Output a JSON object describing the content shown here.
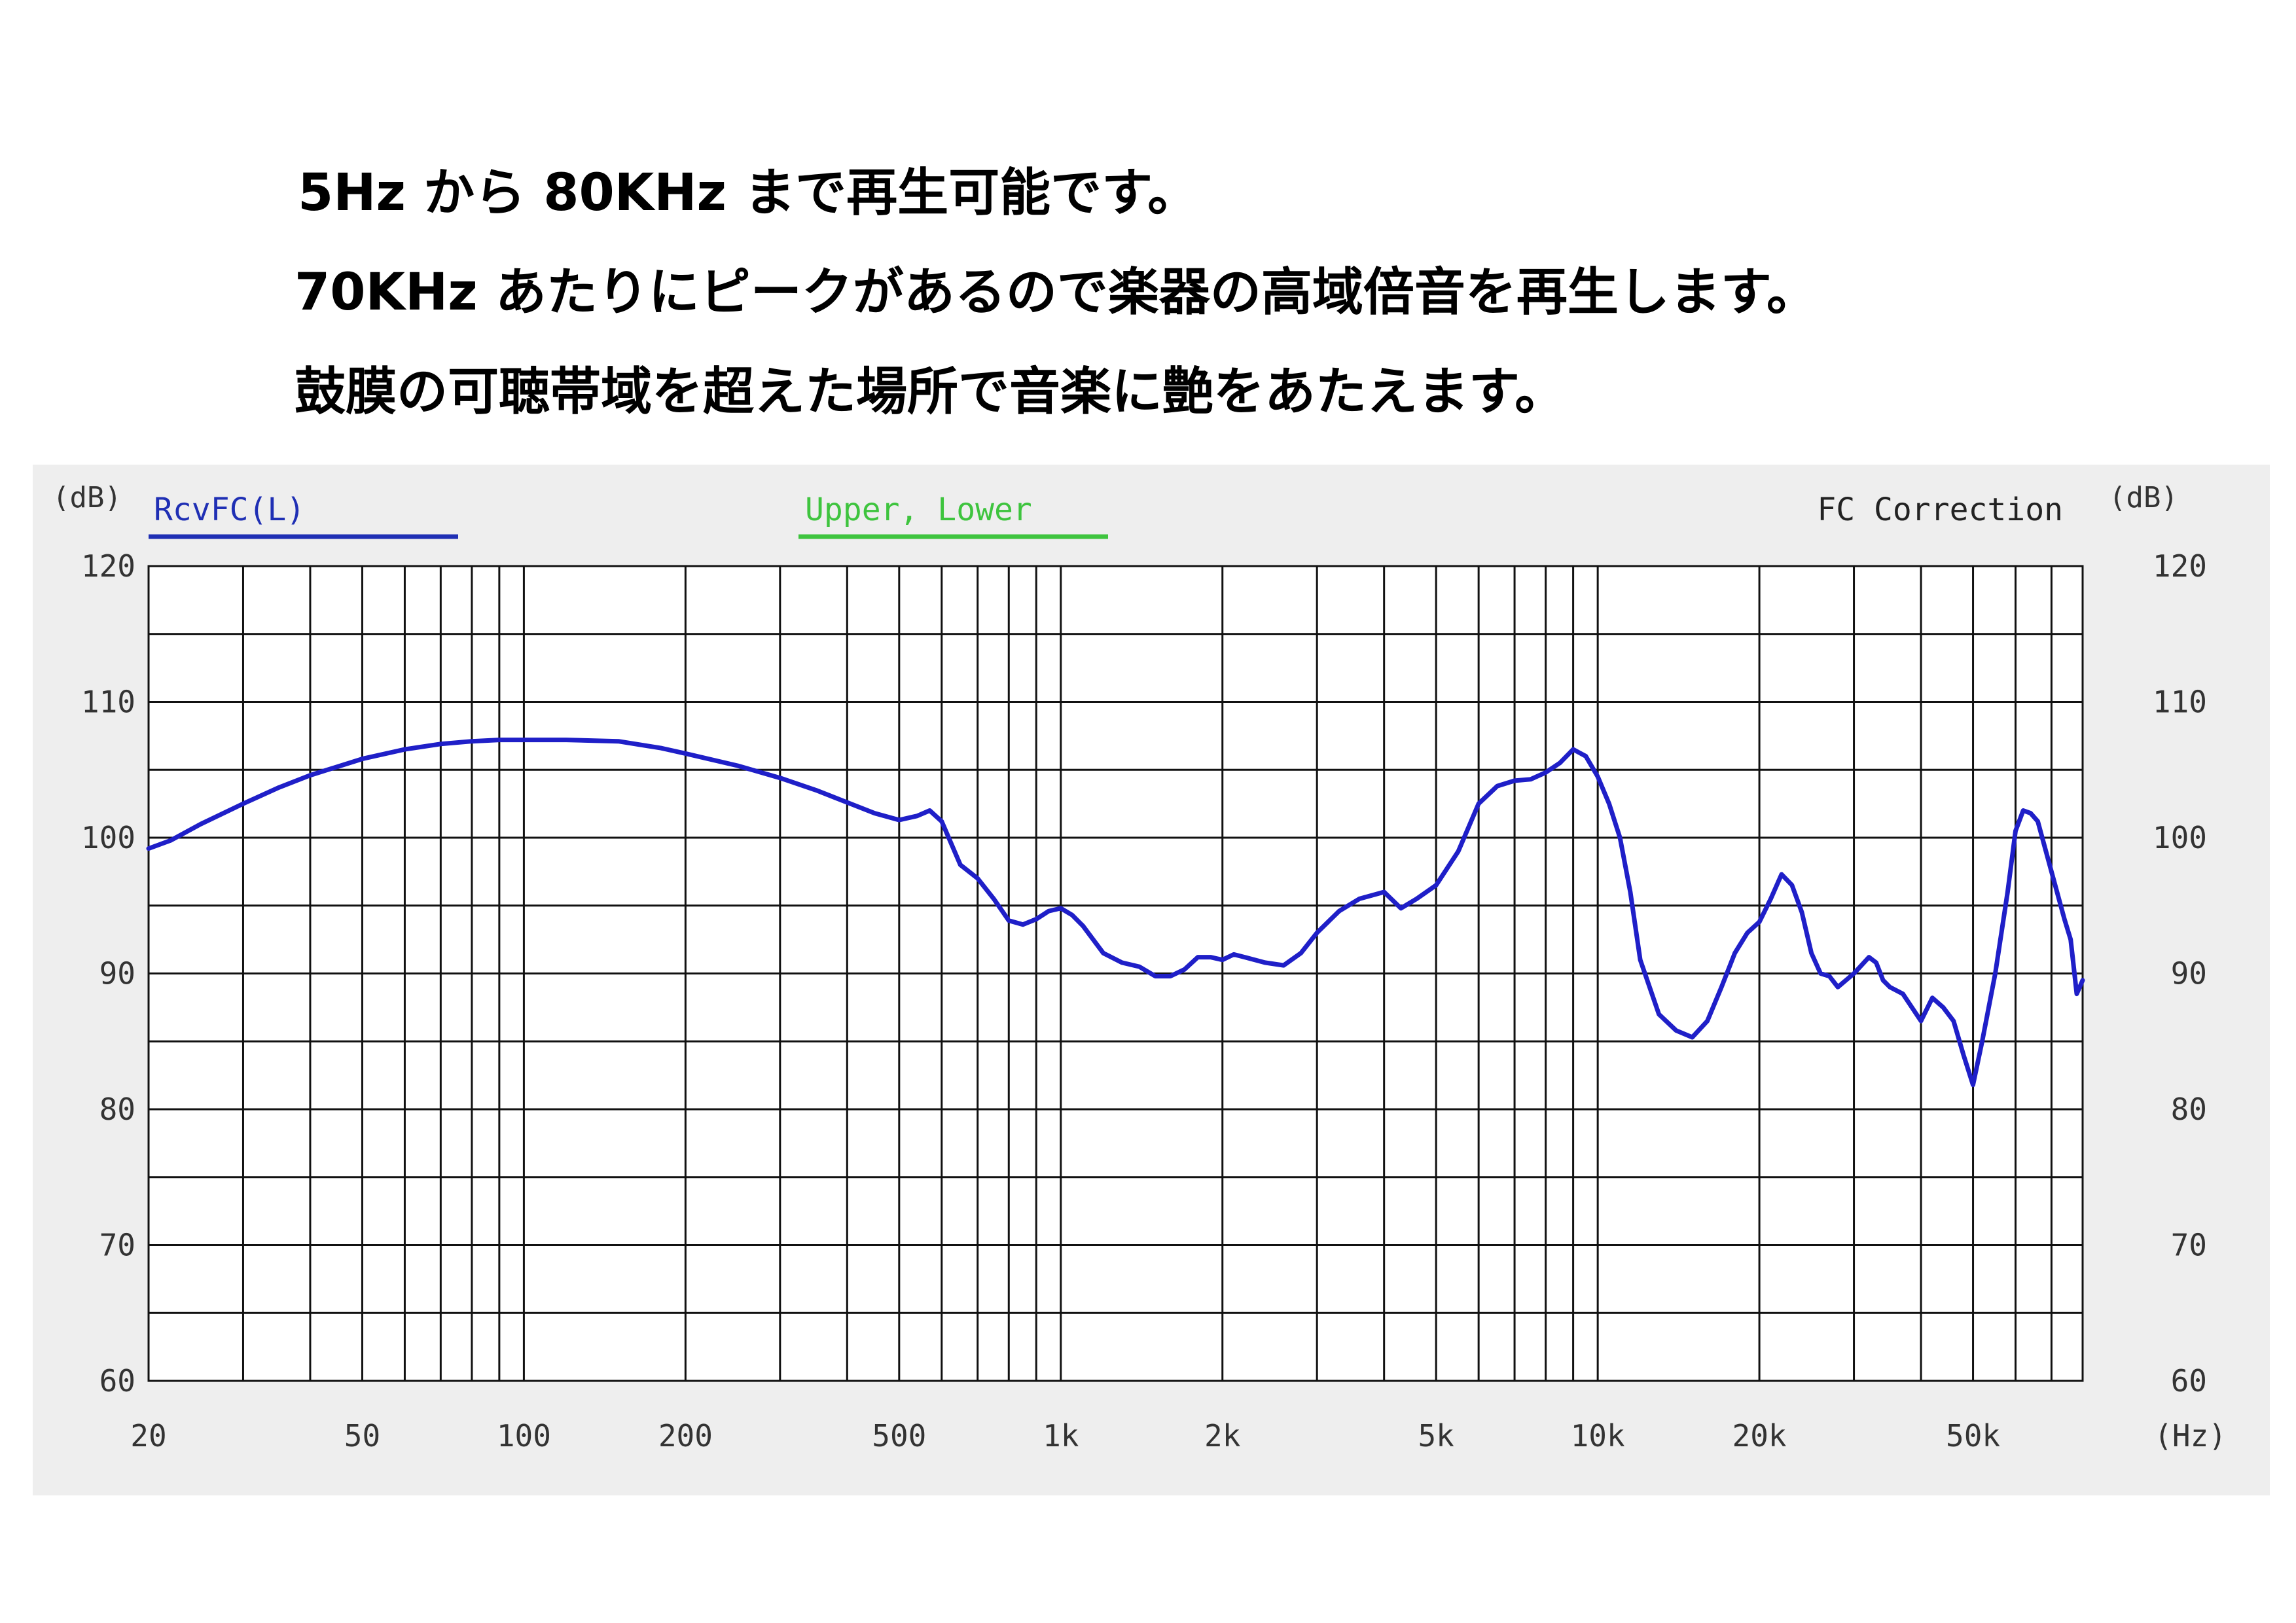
{
  "headlines": [
    "5Hz から 80KHz まで再生可能です。",
    "70KHz あたりにピークがあるので楽器の高域倍音を再生します。",
    "鼓膜の可聴帯域を超えた場所で音楽に艶をあたえます。"
  ],
  "colors": {
    "curve": "#1f1fc8",
    "legend_rcv": "#1f2fb4",
    "legend_upper_lower": "#3ec43e",
    "text": "#333333",
    "grid": "#111111",
    "panel": "#eeeeee",
    "plot_bg": "#ffffff"
  },
  "chart_data": {
    "type": "line",
    "x_scale": "log",
    "xlim": [
      20,
      80000
    ],
    "ylim": [
      60,
      120
    ],
    "ylabel_left": "(dB)",
    "ylabel_right": "(dB)",
    "xlabel": "(Hz)",
    "y_ticks": [
      120,
      110,
      100,
      90,
      80,
      70,
      60
    ],
    "y_minor_step": 5,
    "x_tick_labels": [
      {
        "value": 20,
        "label": "20"
      },
      {
        "value": 50,
        "label": "50"
      },
      {
        "value": 100,
        "label": "100"
      },
      {
        "value": 200,
        "label": "200"
      },
      {
        "value": 500,
        "label": "500"
      },
      {
        "value": 1000,
        "label": "1k"
      },
      {
        "value": 2000,
        "label": "2k"
      },
      {
        "value": 5000,
        "label": "5k"
      },
      {
        "value": 10000,
        "label": "10k"
      },
      {
        "value": 20000,
        "label": "20k"
      },
      {
        "value": 50000,
        "label": "50k"
      }
    ],
    "legend": {
      "rcv_label": "RcvFC(L)",
      "upper_lower_label": "Upper, Lower",
      "correction_label": "FC Correction"
    },
    "grid": true,
    "series": [
      {
        "name": "RcvFC(L)",
        "x": [
          20,
          22,
          25,
          30,
          35,
          40,
          50,
          60,
          70,
          80,
          90,
          100,
          120,
          150,
          180,
          200,
          250,
          300,
          350,
          400,
          450,
          500,
          540,
          570,
          600,
          650,
          700,
          750,
          800,
          850,
          900,
          950,
          1000,
          1050,
          1100,
          1200,
          1300,
          1400,
          1500,
          1600,
          1700,
          1800,
          1900,
          2000,
          2100,
          2200,
          2400,
          2600,
          2800,
          3000,
          3300,
          3600,
          4000,
          4300,
          4600,
          5000,
          5500,
          6000,
          6500,
          7000,
          7500,
          8000,
          8500,
          9000,
          9500,
          10000,
          10500,
          11000,
          11500,
          12000,
          13000,
          14000,
          15000,
          16000,
          17000,
          18000,
          19000,
          20000,
          21000,
          22000,
          23000,
          24000,
          25000,
          26000,
          27000,
          28000,
          30000,
          32000,
          33000,
          34000,
          35000,
          37000,
          40000,
          42000,
          44000,
          46000,
          48000,
          50000,
          52000,
          55000,
          58000,
          60000,
          62000,
          64000,
          66000,
          70000,
          74000,
          76000,
          78000,
          80000
        ],
        "y": [
          99.2,
          99.8,
          101,
          102.5,
          103.7,
          104.6,
          105.8,
          106.5,
          106.9,
          107.1,
          107.2,
          107.2,
          107.2,
          107.1,
          106.6,
          106.2,
          105.3,
          104.4,
          103.5,
          102.6,
          101.8,
          101.3,
          101.6,
          102,
          101.2,
          98,
          97,
          95.5,
          93.9,
          93.6,
          94,
          94.6,
          94.8,
          94.3,
          93.5,
          91.5,
          90.8,
          90.5,
          89.8,
          89.8,
          90.3,
          91.2,
          91.2,
          91,
          91.4,
          91.2,
          90.8,
          90.6,
          91.5,
          93,
          94.6,
          95.5,
          96,
          94.8,
          95.5,
          96.5,
          99,
          102.5,
          103.8,
          104.2,
          104.3,
          104.8,
          105.5,
          106.5,
          106,
          104.5,
          102.5,
          100,
          96,
          91,
          87,
          85.8,
          85.3,
          86.5,
          89,
          91.5,
          93,
          93.8,
          95.5,
          97.3,
          96.5,
          94.5,
          91.5,
          90,
          89.8,
          89,
          90,
          91.2,
          90.8,
          89.5,
          89,
          88.5,
          86.5,
          88.2,
          87.5,
          86.5,
          84,
          81.8,
          85,
          90,
          96,
          100.5,
          102,
          101.8,
          101.2,
          97.5,
          94,
          92.5,
          88.5,
          89.5
        ]
      }
    ]
  }
}
